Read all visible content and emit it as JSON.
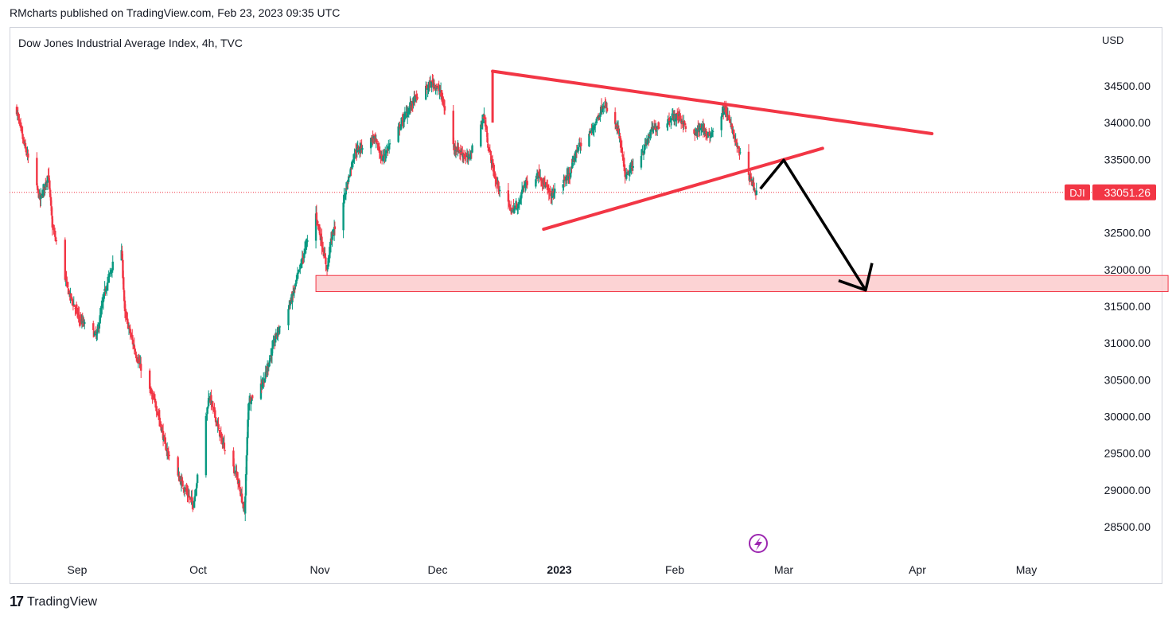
{
  "header": {
    "attribution": "RMcharts published on TradingView.com, Feb 23, 2023 09:35 UTC"
  },
  "symbol_line": "Dow Jones Industrial Average Index, 4h, TVC",
  "currency": "USD",
  "brand": {
    "logo": "17",
    "name": "TradingView"
  },
  "colors": {
    "up": "#089981",
    "down": "#f23645",
    "trendline": "#f23645",
    "arrow": "#000000",
    "zone_fill": "#fccbcd",
    "zone_border": "#f23645",
    "label_bg": "#f23645"
  },
  "icons": {
    "event": "lightning-icon"
  },
  "chart_data": {
    "type": "candlestick",
    "title": "Dow Jones Industrial Average Index, 4h, TVC",
    "ylim": [
      28200,
      35600
    ],
    "y_ticks": [
      "28500.00",
      "29000.00",
      "29500.00",
      "30000.00",
      "30500.00",
      "31000.00",
      "31500.00",
      "32000.00",
      "32500.00",
      "33000.00",
      "33500.00",
      "34000.00",
      "34500.00"
    ],
    "x_labels": [
      "Sep",
      "Oct",
      "Nov",
      "Dec",
      "2023",
      "Feb",
      "Mar",
      "Apr",
      "May"
    ],
    "last_price": {
      "symbol": "DJI",
      "value": "33051.26",
      "price": 33051.26
    },
    "path": [
      [
        "2022-08-17",
        34200
      ],
      [
        "2022-08-19",
        33700
      ],
      [
        "2022-08-23",
        32950
      ],
      [
        "2022-08-25",
        33300
      ],
      [
        "2022-08-26",
        32600
      ],
      [
        "2022-08-30",
        31700
      ],
      [
        "2022-09-02",
        31300
      ],
      [
        "2022-09-06",
        31100
      ],
      [
        "2022-09-08",
        31700
      ],
      [
        "2022-09-12",
        32450
      ],
      [
        "2022-09-13",
        31400
      ],
      [
        "2022-09-16",
        30800
      ],
      [
        "2022-09-21",
        30100
      ],
      [
        "2022-09-23",
        29600
      ],
      [
        "2022-09-26",
        29200
      ],
      [
        "2022-09-30",
        28800
      ],
      [
        "2022-10-04",
        30300
      ],
      [
        "2022-10-07",
        29700
      ],
      [
        "2022-10-11",
        29200
      ],
      [
        "2022-10-13",
        28700
      ],
      [
        "2022-10-14",
        30200
      ],
      [
        "2022-10-18",
        30500
      ],
      [
        "2022-10-21",
        31100
      ],
      [
        "2022-10-25",
        31600
      ],
      [
        "2022-10-28",
        32200
      ],
      [
        "2022-10-31",
        32800
      ],
      [
        "2022-11-03",
        32000
      ],
      [
        "2022-11-04",
        32400
      ],
      [
        "2022-11-07",
        32900
      ],
      [
        "2022-11-10",
        33600
      ],
      [
        "2022-11-15",
        33800
      ],
      [
        "2022-11-17",
        33500
      ],
      [
        "2022-11-22",
        34000
      ],
      [
        "2022-11-25",
        34300
      ],
      [
        "2022-11-30",
        34550
      ],
      [
        "2022-12-02",
        34400
      ],
      [
        "2022-12-05",
        33700
      ],
      [
        "2022-12-07",
        33600
      ],
      [
        "2022-12-09",
        33500
      ],
      [
        "2022-12-13",
        34100
      ],
      [
        "2022-12-14",
        33700
      ],
      [
        "2022-12-16",
        33200
      ],
      [
        "2022-12-20",
        32800
      ],
      [
        "2022-12-22",
        32900
      ],
      [
        "2022-12-23",
        33150
      ],
      [
        "2022-12-27",
        33300
      ],
      [
        "2022-12-30",
        33000
      ],
      [
        "2023-01-04",
        33300
      ],
      [
        "2023-01-06",
        33650
      ],
      [
        "2023-01-10",
        33900
      ],
      [
        "2023-01-13",
        34250
      ],
      [
        "2023-01-17",
        33900
      ],
      [
        "2023-01-19",
        33250
      ],
      [
        "2023-01-24",
        33650
      ],
      [
        "2023-01-26",
        33900
      ],
      [
        "2023-01-31",
        34050
      ],
      [
        "2023-02-02",
        34100
      ],
      [
        "2023-02-06",
        33800
      ],
      [
        "2023-02-08",
        33950
      ],
      [
        "2023-02-10",
        33800
      ],
      [
        "2023-02-14",
        34200
      ],
      [
        "2023-02-16",
        33900
      ],
      [
        "2023-02-17",
        33700
      ],
      [
        "2023-02-21",
        33200
      ],
      [
        "2023-02-22",
        33051
      ]
    ],
    "annotations": {
      "upper_trendline": {
        "from": [
          "2022-12-15",
          34700
        ],
        "to": [
          "2023-04-05",
          33850
        ]
      },
      "lower_trendline": {
        "from": [
          "2022-12-28",
          32550
        ],
        "to": [
          "2023-03-10",
          33650
        ]
      },
      "support_zone": {
        "from_date": "2022-10-31",
        "to_date": "2023-06-09",
        "low": 31700,
        "high": 31920
      },
      "projection_arrow": [
        [
          "2023-02-23",
          33100
        ],
        [
          "2023-03-01",
          33490
        ],
        [
          "2023-03-20",
          31720
        ]
      ]
    }
  }
}
